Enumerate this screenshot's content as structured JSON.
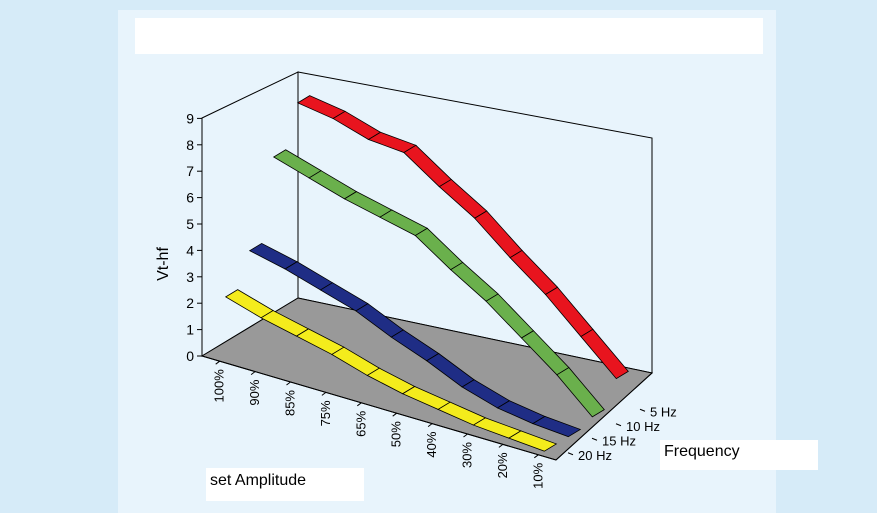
{
  "chart_data": {
    "type": "line",
    "title": "",
    "xlabel": "set Amplitude",
    "ylabel": "Vt-hf",
    "zlabel": "Frequency",
    "categories": [
      "100%",
      "90%",
      "85%",
      "75%",
      "65%",
      "50%",
      "40%",
      "30%",
      "20%",
      "10%"
    ],
    "depth_categories": [
      "5 Hz",
      "10 Hz",
      "15 Hz",
      "20 Hz"
    ],
    "yticks": [
      "0",
      "1",
      "2",
      "3",
      "4",
      "5",
      "6",
      "7",
      "8",
      "9"
    ],
    "ylim": [
      0,
      9
    ],
    "series": [
      {
        "name": "5 Hz",
        "color": "#e8141e",
        "values": [
          8.0,
          7.8,
          7.4,
          7.3,
          6.4,
          5.6,
          4.5,
          3.5,
          2.3,
          1.1
        ]
      },
      {
        "name": "10 Hz",
        "color": "#6ab04c",
        "values": [
          6.5,
          6.1,
          5.7,
          5.4,
          5.1,
          4.2,
          3.4,
          2.4,
          1.4,
          0.2
        ]
      },
      {
        "name": "15 Hz",
        "color": "#1f2d85",
        "values": [
          3.5,
          3.2,
          2.8,
          2.4,
          1.8,
          1.3,
          0.7,
          0.3,
          0.1,
          0.0
        ]
      },
      {
        "name": "20 Hz",
        "color": "#f4ec1c",
        "values": [
          2.3,
          1.9,
          1.6,
          1.3,
          0.9,
          0.6,
          0.4,
          0.2,
          0.1,
          0.0
        ]
      }
    ],
    "grid": false
  }
}
